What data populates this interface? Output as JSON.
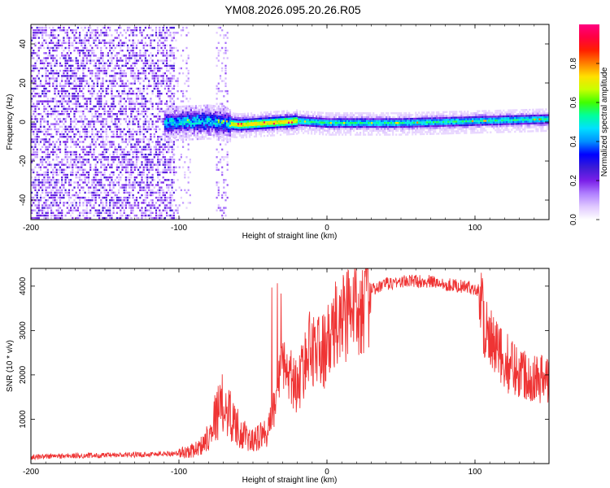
{
  "title": "YM08.2026.095.20.26.R05",
  "chart_data": [
    {
      "type": "heatmap",
      "xlabel": "Height of straight line (km)",
      "ylabel": "Frequency (Hz)",
      "xlim": [
        -200,
        150
      ],
      "ylim": [
        -50,
        50
      ],
      "x_ticks": [
        -200,
        -100,
        0,
        100
      ],
      "y_ticks": [
        -40,
        -20,
        0,
        20,
        40
      ],
      "colorbar": {
        "label": "Normalized spectral amplitude",
        "range": [
          0,
          1
        ],
        "ticks": [
          "0.0",
          "0.2",
          "0.4",
          "0.6",
          "0.8"
        ],
        "tick_values": [
          0,
          0.2,
          0.4,
          0.6,
          0.8
        ],
        "colormap": [
          "#ffffff",
          "#e0c8ff",
          "#b080ff",
          "#7a1fe8",
          "#3b1cd6",
          "#0000ff",
          "#0090ff",
          "#00e0ff",
          "#00ff9c",
          "#40ff00",
          "#c8ff00",
          "#ffe000",
          "#ff8000",
          "#ff2000",
          "#ff0040",
          "#ff0080"
        ]
      },
      "regions": [
        {
          "x": [
            -200,
            -105
          ],
          "description_level": 0.15
        },
        {
          "x": [
            -105,
            -65
          ],
          "level": 0.45
        },
        {
          "x": [
            -65,
            -20
          ],
          "level": 0.75
        },
        {
          "x": [
            -20,
            150
          ],
          "level": 0.5
        }
      ],
      "ridge": [
        {
          "x": -110,
          "f": 0
        },
        {
          "x": -80,
          "f": 1
        },
        {
          "x": -60,
          "f": -1
        },
        {
          "x": -40,
          "f": 0
        },
        {
          "x": -20,
          "f": 1
        },
        {
          "x": 0,
          "f": 0
        },
        {
          "x": 50,
          "f": 0
        },
        {
          "x": 100,
          "f": 1
        },
        {
          "x": 150,
          "f": 2
        }
      ]
    },
    {
      "type": "line",
      "xlabel": "Height of straight line (km)",
      "ylabel": "SNR (10 * v/v)",
      "xlim": [
        -200,
        150
      ],
      "ylim": [
        0,
        4400
      ],
      "x_ticks": [
        -200,
        -100,
        0,
        100
      ],
      "y_ticks": [
        1000,
        2000,
        3000,
        4000
      ],
      "color": "#ef3434",
      "series": [
        {
          "x": [
            -200,
            -180,
            -160,
            -140,
            -120,
            -100,
            -90,
            -85,
            -80,
            -75,
            -70,
            -65,
            -60,
            -55,
            -50,
            -45,
            -40,
            -35,
            -30,
            -25,
            -20,
            -15,
            -10,
            -5,
            0,
            5,
            10,
            15,
            20,
            25,
            30,
            40,
            50,
            60,
            70,
            80,
            90,
            100,
            103,
            106,
            110,
            115,
            120,
            130,
            140,
            150
          ],
          "values": [
            150,
            170,
            180,
            190,
            210,
            230,
            300,
            400,
            650,
            1100,
            1350,
            1100,
            800,
            600,
            500,
            600,
            800,
            1300,
            2200,
            2000,
            1700,
            2300,
            2700,
            2500,
            2600,
            3000,
            3300,
            3500,
            3700,
            3800,
            3900,
            4050,
            4100,
            4120,
            4100,
            4050,
            4000,
            3950,
            3900,
            3300,
            2700,
            2500,
            2300,
            2100,
            1950,
            1900
          ]
        }
      ]
    }
  ]
}
